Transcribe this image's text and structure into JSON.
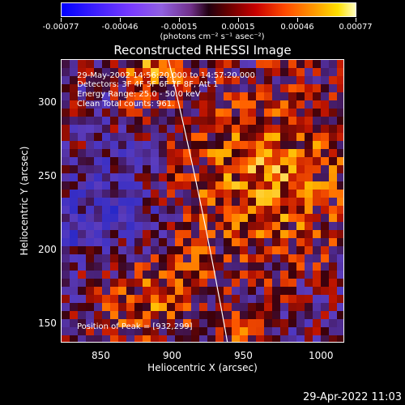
{
  "colorbar": {
    "ticks": [
      "-0.00077",
      "-0.00046",
      "-0.00015",
      "0.00015",
      "0.00046",
      "0.00077"
    ],
    "unit_label": "(photons cm⁻² s⁻¹ asec⁻²)"
  },
  "title": "Reconstructed RHESSI Image",
  "info": {
    "time_range": "29-May-2002 14:56:20.000 to 14:57:20.000",
    "detectors": "Detectors: 3F 4F 5F 6F 7F 8F, Att 1",
    "energy": "Energy Range: 25.0 - 50.0 keV",
    "algorithm": "Clean    Total counts: 961.",
    "peak": "Position of Peak = [932,299]"
  },
  "axes": {
    "xlabel": "Heliocentric X (arcsec)",
    "ylabel": "Heliocentric Y (arcsec)",
    "xticks": [
      "850",
      "900",
      "950",
      "1000"
    ],
    "yticks": [
      "300",
      "250",
      "200",
      "150"
    ]
  },
  "timestamp": "29-Apr-2022 11:03",
  "colors": {
    "background": "#000000",
    "low": "#3a1a70",
    "high": "#ffe000"
  }
}
